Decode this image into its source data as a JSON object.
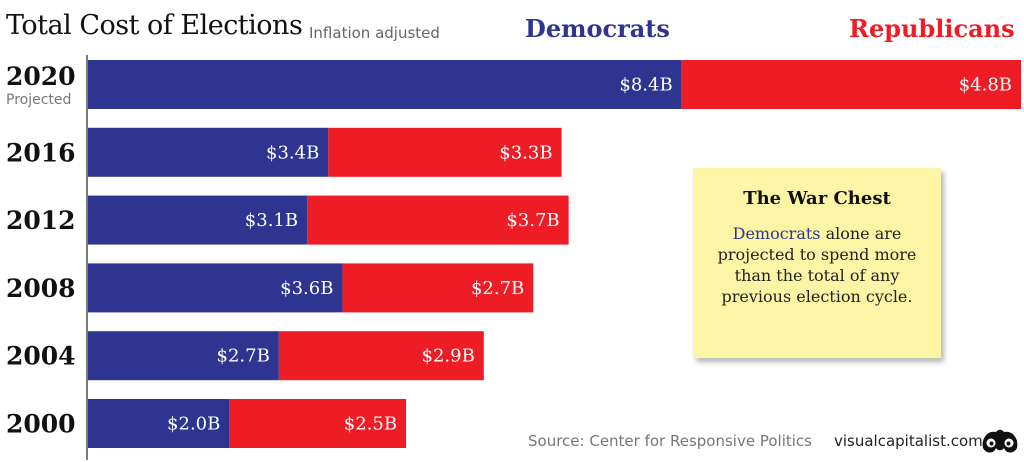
{
  "chart_data": {
    "type": "bar",
    "orientation": "horizontal",
    "stacked": true,
    "title": "Total Cost of Elections",
    "subtitle": "Inflation adjusted",
    "categories": [
      "2020",
      "2016",
      "2012",
      "2008",
      "2004",
      "2000"
    ],
    "category_notes": {
      "2020": "Projected"
    },
    "series": [
      {
        "name": "Democrats",
        "color": "#2e3590",
        "values": [
          8.4,
          3.4,
          3.1,
          3.6,
          2.7,
          2.0
        ],
        "labels": [
          "$8.4B",
          "$3.4B",
          "$3.1B",
          "$3.6B",
          "$2.7B",
          "$2.0B"
        ]
      },
      {
        "name": "Republicans",
        "color": "#ee1c25",
        "values": [
          4.8,
          3.3,
          3.7,
          2.7,
          2.9,
          2.5
        ],
        "labels": [
          "$4.8B",
          "$3.3B",
          "$3.7B",
          "$2.7B",
          "$2.9B",
          "$2.5B"
        ]
      }
    ],
    "unit": "billion USD",
    "xlim": [
      0,
      13.2
    ],
    "grid": false,
    "legend": "top"
  },
  "note": {
    "title": "The War Chest",
    "body_highlight": "Democrats",
    "body_rest": " alone are projected to spend more than the total of any previous election cycle."
  },
  "footer": {
    "source": "Source: Center for Responsive Politics",
    "brand": "visualcapitalist.com"
  },
  "brand_logo_icon": "visualcapitalist-logo-icon"
}
